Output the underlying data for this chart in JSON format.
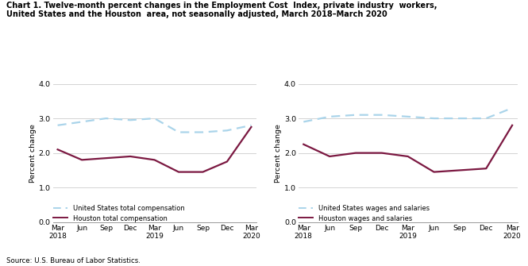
{
  "title_line1": "Chart 1. Twelve-month percent changes in the Employment Cost  Index, private industry  workers,",
  "title_line2": "United States and the Houston  area, not seasonally adjusted, March 2018–March 2020",
  "source": "Source: U.S. Bureau of Labor Statistics.",
  "ylabel": "Percent change",
  "x_labels": [
    "Mar\n2018",
    "Jun",
    "Sep",
    "Dec",
    "Mar\n2019",
    "Jun",
    "Sep",
    "Dec",
    "Mar\n2020"
  ],
  "x_positions": [
    0,
    1,
    2,
    3,
    4,
    5,
    6,
    7,
    8
  ],
  "ylim": [
    0.0,
    4.0
  ],
  "yticks": [
    0.0,
    1.0,
    2.0,
    3.0,
    4.0
  ],
  "left_us": [
    2.8,
    2.9,
    3.0,
    2.95,
    3.0,
    2.6,
    2.6,
    2.65,
    2.8
  ],
  "left_houston": [
    2.1,
    1.8,
    1.85,
    1.9,
    1.8,
    1.45,
    1.45,
    1.75,
    2.75
  ],
  "left_legend_us": "United States total compensation",
  "left_legend_houston": "Houston total compensation",
  "right_us": [
    2.9,
    3.05,
    3.1,
    3.1,
    3.05,
    3.0,
    3.0,
    3.0,
    3.3
  ],
  "right_houston": [
    2.25,
    1.9,
    2.0,
    2.0,
    1.9,
    1.45,
    1.5,
    1.55,
    2.8
  ],
  "right_legend_us": "United States wages and salaries",
  "right_legend_houston": "Houston wages and salaries",
  "us_color": "#aad4ea",
  "houston_color": "#7b1841",
  "us_linewidth": 1.6,
  "houston_linewidth": 1.6,
  "grid_color": "#cccccc",
  "background_color": "#ffffff"
}
